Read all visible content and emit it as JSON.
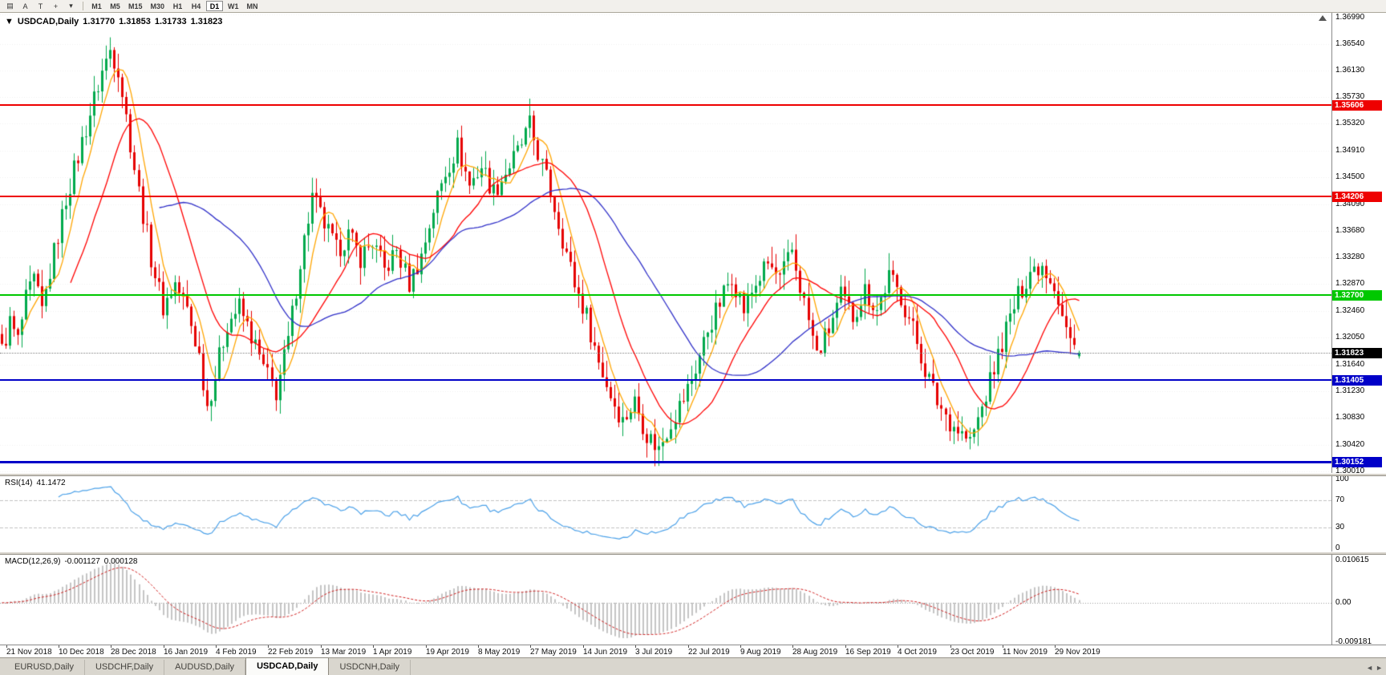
{
  "toolbar": {
    "icons": [
      {
        "name": "chart-window-icon",
        "glyph": "▤"
      },
      {
        "name": "annotation-a-tool",
        "glyph": "A"
      },
      {
        "name": "text-tool",
        "glyph": "T"
      },
      {
        "name": "crosshair-icon",
        "glyph": "+"
      },
      {
        "name": "caret-down-icon",
        "glyph": "▾"
      }
    ],
    "timeframes": [
      {
        "label": "M1",
        "active": false
      },
      {
        "label": "M5",
        "active": false
      },
      {
        "label": "M15",
        "active": false
      },
      {
        "label": "M30",
        "active": false
      },
      {
        "label": "H1",
        "active": false
      },
      {
        "label": "H4",
        "active": false
      },
      {
        "label": "D1",
        "active": true
      },
      {
        "label": "W1",
        "active": false
      },
      {
        "label": "MN",
        "active": false
      }
    ]
  },
  "header": {
    "collapse_glyph": "▼",
    "title": "USDCAD,Daily",
    "open": "1.31770",
    "high": "1.31853",
    "low": "1.31733",
    "close": "1.31823"
  },
  "price_axis": {
    "range": {
      "top": 1.3699,
      "bottom": 1.3001
    },
    "ticks": [
      "1.36990",
      "1.36540",
      "1.36130",
      "1.35730",
      "1.35320",
      "1.34910",
      "1.34500",
      "1.34090",
      "1.33680",
      "1.33280",
      "1.32870",
      "1.32460",
      "1.32050",
      "1.31640",
      "1.31230",
      "1.30830",
      "1.30420",
      "1.30010"
    ]
  },
  "hlines": [
    {
      "price": 1.35606,
      "label": "1.35606",
      "color": "#EE0000",
      "thickness": 2
    },
    {
      "price": 1.34206,
      "label": "1.34206",
      "color": "#EE0000",
      "thickness": 2
    },
    {
      "price": 1.327,
      "label": "1.32700",
      "color": "#00C800",
      "thickness": 2
    },
    {
      "price": 1.31405,
      "label": "1.31405",
      "color": "#0000C8",
      "thickness": 2
    },
    {
      "price": 1.30152,
      "label": "1.30152",
      "color": "#0000C8",
      "thickness": 3
    }
  ],
  "current_price": {
    "value": 1.31823,
    "label": "1.31823",
    "badge_color": "#000000"
  },
  "rsi": {
    "name": "RSI(14)",
    "value": "41.1472",
    "period": 14,
    "levels": [
      30,
      70
    ],
    "axis": [
      {
        "label": "100",
        "value": 100
      },
      {
        "label": "70",
        "value": 70
      },
      {
        "label": "30",
        "value": 30
      },
      {
        "label": "0",
        "value": 0
      }
    ],
    "color": "#4AA0E8",
    "level_color": "#C0C0C0"
  },
  "macd": {
    "name": "MACD(12,26,9)",
    "main_value": "-0.001127",
    "signal_value": "0.000128",
    "range": {
      "max": 0.010615,
      "min": -0.009181
    },
    "axis": [
      {
        "label": "0.010615",
        "value": 0.010615
      },
      {
        "label": "0.00",
        "value": 0
      },
      {
        "label": "-0.009181",
        "value": -0.009181
      }
    ],
    "hist_color": "#C4C4C4",
    "signal_color": "#D02020"
  },
  "date_axis": {
    "first_bar_index": 1,
    "index_step": 13,
    "labels": [
      "21 Nov 2018",
      "10 Dec 2018",
      "28 Dec 2018",
      "16 Jan 2019",
      "4 Feb 2019",
      "22 Feb 2019",
      "13 Mar 2019",
      "1 Apr 2019",
      "19 Apr 2019",
      "8 May 2019",
      "27 May 2019",
      "14 Jun 2019",
      "3 Jul 2019",
      "22 Jul 2019",
      "9 Aug 2019",
      "28 Aug 2019",
      "16 Sep 2019",
      "4 Oct 2019",
      "23 Oct 2019",
      "11 Nov 2019",
      "29 Nov 2019"
    ]
  },
  "tabs": [
    {
      "label": "EURUSD,Daily",
      "active": false
    },
    {
      "label": "USDCHF,Daily",
      "active": false
    },
    {
      "label": "AUDUSD,Daily",
      "active": false
    },
    {
      "label": "USDCAD,Daily",
      "active": true
    },
    {
      "label": "USDCNH,Daily",
      "active": false
    }
  ],
  "tab_scroll_icons": {
    "left": "◄",
    "right": "►"
  },
  "chart_data": {
    "type": "candlestick",
    "symbol": "USDCAD",
    "timeframe": "Daily",
    "bar_count": 268,
    "colors": {
      "up": "#00A94C",
      "down": "#E60000",
      "background": "#FFFFFF",
      "grid": "#F0F0F0"
    },
    "ma": [
      {
        "period": 6,
        "color": "#FFA500",
        "name": "fast-ma"
      },
      {
        "period": 18,
        "color": "#FF0000",
        "name": "medium-ma"
      },
      {
        "period": 40,
        "color": "#3030C8",
        "name": "slow-ma"
      }
    ],
    "last_candle": {
      "o": 1.3177,
      "h": 1.31853,
      "l": 1.31733,
      "c": 1.31823
    },
    "wick_overrides": [
      {
        "i": 27,
        "h": 1.3664
      },
      {
        "i": 131,
        "h": 1.3563
      },
      {
        "i": 163,
        "l": 1.3018
      },
      {
        "i": 240,
        "l": 1.3042
      }
    ],
    "close_anchors": [
      [
        0,
        1.3185
      ],
      [
        2,
        1.3228
      ],
      [
        4,
        1.32
      ],
      [
        6,
        1.3262
      ],
      [
        8,
        1.3292
      ],
      [
        10,
        1.3245
      ],
      [
        13,
        1.3335
      ],
      [
        16,
        1.3418
      ],
      [
        19,
        1.3482
      ],
      [
        22,
        1.3548
      ],
      [
        25,
        1.3612
      ],
      [
        27,
        1.3645
      ],
      [
        29,
        1.3618
      ],
      [
        31,
        1.3542
      ],
      [
        34,
        1.3428
      ],
      [
        37,
        1.3328
      ],
      [
        40,
        1.3252
      ],
      [
        43,
        1.3288
      ],
      [
        46,
        1.3248
      ],
      [
        49,
        1.3178
      ],
      [
        51,
        1.3102
      ],
      [
        53,
        1.3148
      ],
      [
        56,
        1.3228
      ],
      [
        59,
        1.3252
      ],
      [
        62,
        1.3208
      ],
      [
        65,
        1.3158
      ],
      [
        68,
        1.3122
      ],
      [
        71,
        1.32
      ],
      [
        74,
        1.3322
      ],
      [
        77,
        1.342
      ],
      [
        80,
        1.3378
      ],
      [
        83,
        1.3338
      ],
      [
        86,
        1.3362
      ],
      [
        89,
        1.3328
      ],
      [
        92,
        1.3352
      ],
      [
        95,
        1.3308
      ],
      [
        98,
        1.3338
      ],
      [
        101,
        1.3288
      ],
      [
        104,
        1.333
      ],
      [
        107,
        1.3402
      ],
      [
        110,
        1.3458
      ],
      [
        113,
        1.3498
      ],
      [
        116,
        1.3438
      ],
      [
        119,
        1.3468
      ],
      [
        122,
        1.3428
      ],
      [
        125,
        1.3458
      ],
      [
        128,
        1.3488
      ],
      [
        131,
        1.3528
      ],
      [
        133,
        1.3488
      ],
      [
        136,
        1.3428
      ],
      [
        139,
        1.3358
      ],
      [
        142,
        1.3288
      ],
      [
        145,
        1.3238
      ],
      [
        148,
        1.3168
      ],
      [
        151,
        1.3118
      ],
      [
        154,
        1.3078
      ],
      [
        157,
        1.3108
      ],
      [
        160,
        1.3058
      ],
      [
        163,
        1.3035
      ],
      [
        166,
        1.3078
      ],
      [
        169,
        1.3112
      ],
      [
        172,
        1.3158
      ],
      [
        175,
        1.3218
      ],
      [
        178,
        1.3258
      ],
      [
        181,
        1.3302
      ],
      [
        184,
        1.3248
      ],
      [
        187,
        1.3288
      ],
      [
        190,
        1.3318
      ],
      [
        193,
        1.3292
      ],
      [
        196,
        1.3338
      ],
      [
        199,
        1.3258
      ],
      [
        202,
        1.3178
      ],
      [
        205,
        1.3218
      ],
      [
        208,
        1.3268
      ],
      [
        211,
        1.3238
      ],
      [
        214,
        1.3278
      ],
      [
        217,
        1.3248
      ],
      [
        220,
        1.3298
      ],
      [
        223,
        1.3268
      ],
      [
        226,
        1.3218
      ],
      [
        229,
        1.3158
      ],
      [
        232,
        1.3108
      ],
      [
        235,
        1.3078
      ],
      [
        238,
        1.3058
      ],
      [
        240,
        1.3045
      ],
      [
        243,
        1.3098
      ],
      [
        246,
        1.3158
      ],
      [
        249,
        1.3218
      ],
      [
        252,
        1.3268
      ],
      [
        255,
        1.3308
      ],
      [
        258,
        1.3318
      ],
      [
        261,
        1.3288
      ],
      [
        263,
        1.3238
      ],
      [
        265,
        1.3198
      ],
      [
        267,
        1.31823
      ]
    ]
  }
}
